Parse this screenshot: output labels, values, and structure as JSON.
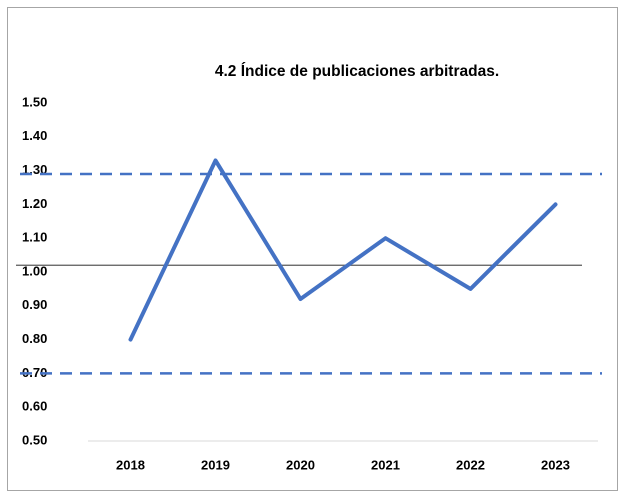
{
  "chart_data": {
    "type": "line",
    "title": "4.2 Índice de publicaciones arbitradas.",
    "categories": [
      "2018",
      "2019",
      "2020",
      "2021",
      "2022",
      "2023"
    ],
    "series": [
      {
        "color": "#4472c4",
        "values": [
          0.8,
          1.33,
          0.92,
          1.1,
          0.95,
          1.2
        ]
      }
    ],
    "ylim": [
      0.5,
      1.5
    ],
    "yticks": [
      {
        "value": 0.5,
        "label": "0.50"
      },
      {
        "value": 0.6,
        "label": "0.60"
      },
      {
        "value": 0.7,
        "label": "0.70"
      },
      {
        "value": 0.8,
        "label": "0.80"
      },
      {
        "value": 0.9,
        "label": "0.90"
      },
      {
        "value": 1.0,
        "label": "1.00"
      },
      {
        "value": 1.1,
        "label": "1.10"
      },
      {
        "value": 1.2,
        "label": "1.20"
      },
      {
        "value": 1.3,
        "label": "1.30"
      },
      {
        "value": 1.4,
        "label": "1.40"
      },
      {
        "value": 1.5,
        "label": "1.50"
      }
    ],
    "grid": false,
    "reference_lines": [
      {
        "value": 1.29,
        "style": "dashed",
        "color": "#4472c4"
      },
      {
        "value": 1.02,
        "style": "solid",
        "color": "#595959"
      },
      {
        "value": 0.7,
        "style": "dashed",
        "color": "#4472c4"
      }
    ]
  }
}
